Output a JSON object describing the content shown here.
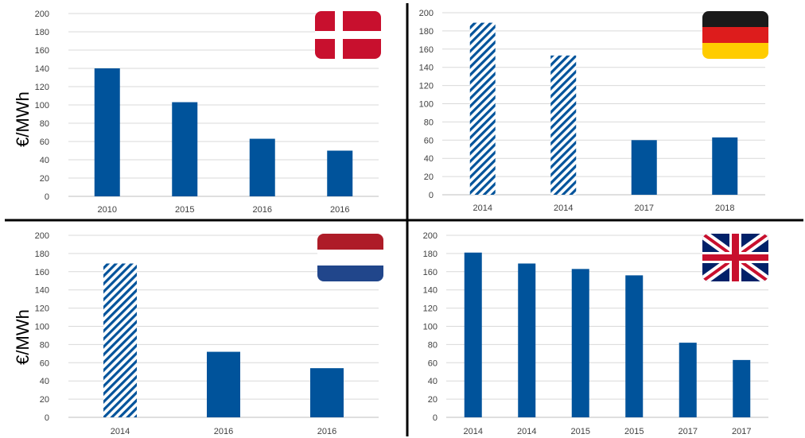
{
  "colors": {
    "bar": "#00539B",
    "grid": "#d9d9d9",
    "divider": "#000000"
  },
  "y_axis_label": "€/MWh",
  "chart_data": [
    {
      "type": "bar",
      "flag": "denmark-flag",
      "categories": [
        "2010",
        "2015",
        "2016",
        "2016"
      ],
      "values": [
        140,
        103,
        63,
        50
      ],
      "hatched": [
        false,
        false,
        false,
        false
      ],
      "ylim": [
        0,
        200
      ],
      "yticks": [
        0,
        20,
        40,
        60,
        80,
        100,
        120,
        140,
        160,
        180,
        200
      ],
      "ylabel": "€/MWh",
      "grid": true
    },
    {
      "type": "bar",
      "flag": "germany-flag",
      "categories": [
        "2014",
        "2014",
        "2017",
        "2018"
      ],
      "values": [
        189,
        153,
        60,
        63
      ],
      "hatched": [
        true,
        true,
        false,
        false
      ],
      "ylim": [
        0,
        200
      ],
      "yticks": [
        0,
        20,
        40,
        60,
        80,
        100,
        120,
        140,
        160,
        180,
        200
      ],
      "ylabel": "",
      "grid": true
    },
    {
      "type": "bar",
      "flag": "netherlands-flag",
      "categories": [
        "2014",
        "2016",
        "2016"
      ],
      "values": [
        169,
        72,
        54
      ],
      "hatched": [
        true,
        false,
        false
      ],
      "ylim": [
        0,
        200
      ],
      "yticks": [
        0,
        20,
        40,
        60,
        80,
        100,
        120,
        140,
        160,
        180,
        200
      ],
      "ylabel": "€/MWh",
      "grid": true
    },
    {
      "type": "bar",
      "flag": "united-kingdom-flag",
      "categories": [
        "2014",
        "2014",
        "2015",
        "2015",
        "2017",
        "2017"
      ],
      "values": [
        181,
        169,
        163,
        156,
        82,
        63
      ],
      "hatched": [
        false,
        false,
        false,
        false,
        false,
        false
      ],
      "ylim": [
        0,
        200
      ],
      "yticks": [
        0,
        20,
        40,
        60,
        80,
        100,
        120,
        140,
        160,
        180,
        200
      ],
      "ylabel": "",
      "grid": true
    }
  ]
}
